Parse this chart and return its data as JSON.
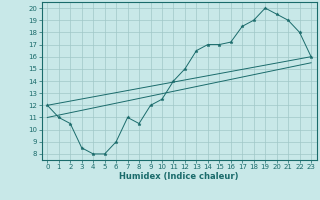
{
  "xlabel": "Humidex (Indice chaleur)",
  "bg_color": "#c8e8e8",
  "grid_color": "#a0c8c8",
  "line_color": "#1a6b6b",
  "xlim": [
    -0.5,
    23.5
  ],
  "ylim": [
    7.5,
    20.5
  ],
  "xticks": [
    0,
    1,
    2,
    3,
    4,
    5,
    6,
    7,
    8,
    9,
    10,
    11,
    12,
    13,
    14,
    15,
    16,
    17,
    18,
    19,
    20,
    21,
    22,
    23
  ],
  "yticks": [
    8,
    9,
    10,
    11,
    12,
    13,
    14,
    15,
    16,
    17,
    18,
    19,
    20
  ],
  "line1_x": [
    0,
    1,
    2,
    3,
    4,
    5,
    6,
    7,
    8,
    9,
    10,
    11,
    12,
    13,
    14,
    15,
    16,
    17,
    18,
    19,
    20,
    21,
    22,
    23
  ],
  "line1_y": [
    12,
    11,
    10.5,
    8.5,
    8,
    8,
    9,
    11,
    10.5,
    12,
    12.5,
    14,
    15,
    16.5,
    17,
    17,
    17.2,
    18.5,
    19,
    20,
    19.5,
    19,
    18,
    16
  ],
  "line2_x": [
    0,
    23
  ],
  "line2_y": [
    12,
    16
  ],
  "line3_x": [
    0,
    23
  ],
  "line3_y": [
    11,
    15.5
  ]
}
